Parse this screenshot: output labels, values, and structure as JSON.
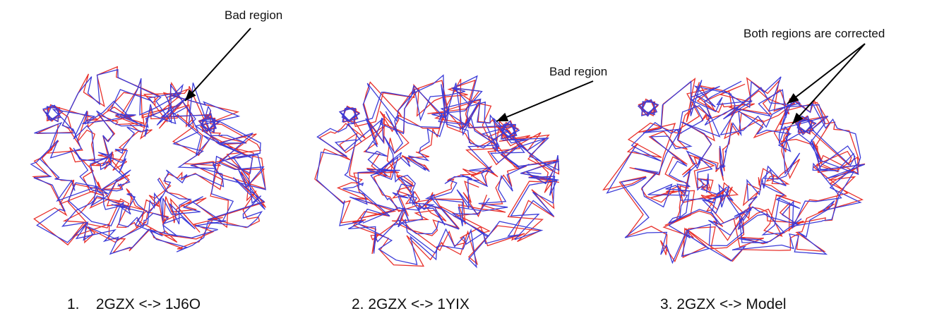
{
  "panels": [
    {
      "caption": "1.    2GZX <-> 1J6O",
      "annotations": [
        "Bad region"
      ]
    },
    {
      "caption": "2. 2GZX <-> 1YIX",
      "annotations": [
        "Bad region"
      ]
    },
    {
      "caption": "3. 2GZX <-> Model",
      "annotations": [
        "Both regions are corrected"
      ]
    }
  ],
  "colors": {
    "trace_a": "#e8302a",
    "trace_b": "#3b3bd8",
    "arrow": "#000000",
    "text": "#111111"
  }
}
